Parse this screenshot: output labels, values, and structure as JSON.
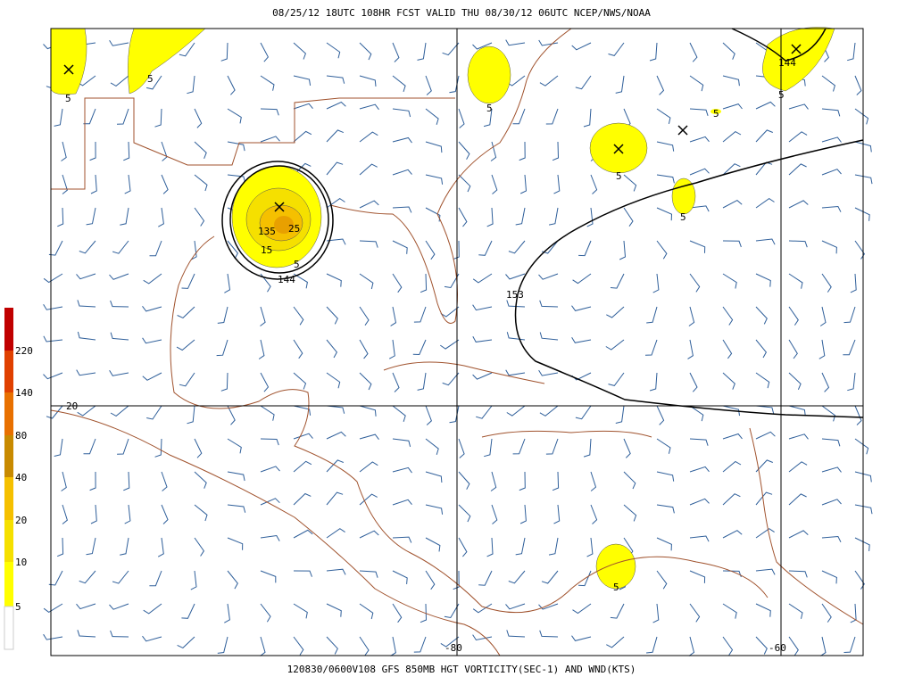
{
  "header": {
    "title": "08/25/12 18UTC  108HR  FCST VALID THU 08/30/12 06UTC  NCEP/NWS/NOAA"
  },
  "footer": {
    "caption": "120830/0600V108 GFS 850MB HGT VORTICITY(SEC-1) AND WND(KTS)"
  },
  "legend": {
    "labels": [
      "220",
      "140",
      "80",
      "40",
      "20",
      "10",
      "5"
    ]
  },
  "grid_labels": {
    "lat": "20",
    "lon": [
      "-80",
      "-60"
    ]
  },
  "contour_labels": [
    "5",
    "5",
    "5",
    "5",
    "5",
    "5",
    "5",
    "5",
    "5",
    "15",
    "135",
    "25",
    "144",
    "153",
    "144"
  ]
}
